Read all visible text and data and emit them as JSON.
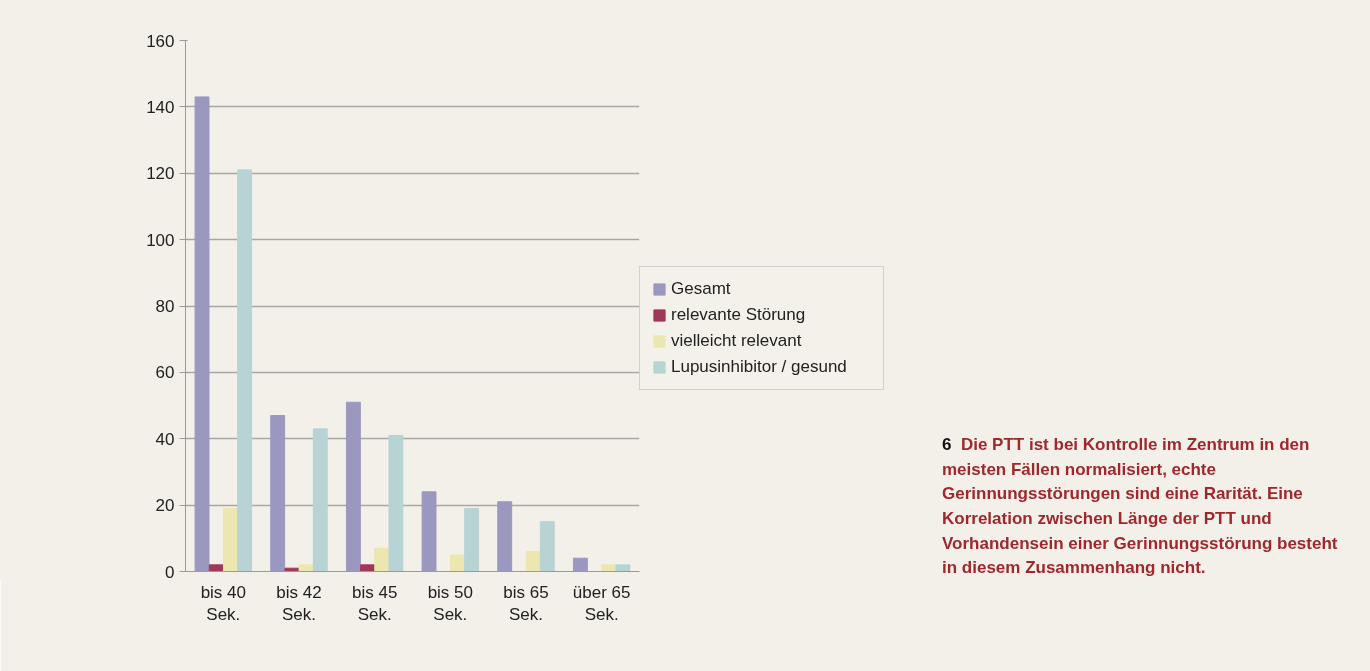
{
  "chart_data": {
    "type": "bar",
    "categories": [
      "bis 40\nSek.",
      "bis 42\nSek.",
      "bis 45\nSek.",
      "bis 50\nSek.",
      "bis 65\nSek.",
      "über 65\nSek."
    ],
    "series": [
      {
        "name": "Gesamt",
        "color": "#9b98c0",
        "values": [
          143,
          47,
          51,
          24,
          21,
          4
        ]
      },
      {
        "name": "relevante Störung",
        "color": "#a0385a",
        "values": [
          2,
          1,
          2,
          0,
          0,
          0
        ]
      },
      {
        "name": "vielleicht relevant",
        "color": "#ece6b0",
        "values": [
          19,
          2,
          7,
          5,
          6,
          2
        ]
      },
      {
        "name": "Lupusinhibitor / gesund",
        "color": "#b7d3d3",
        "values": [
          121,
          43,
          41,
          19,
          15,
          2
        ]
      }
    ],
    "ylim": [
      0,
      160
    ],
    "yticks": [
      0,
      20,
      40,
      60,
      80,
      100,
      120,
      140,
      160
    ],
    "grid": "y",
    "legend": "right",
    "annotations": [
      "6 Die PTT ist bei Kontrolle im Zentrum in den meisten Fällen normalisiert, echte Gerinnungsstörungen sind eine Rarität. Eine Korrelation zwischen Länge der PTT und Vorhandensein einer Gerinnungsstörung besteht in diesem Zusammenhang nicht."
    ]
  }
}
